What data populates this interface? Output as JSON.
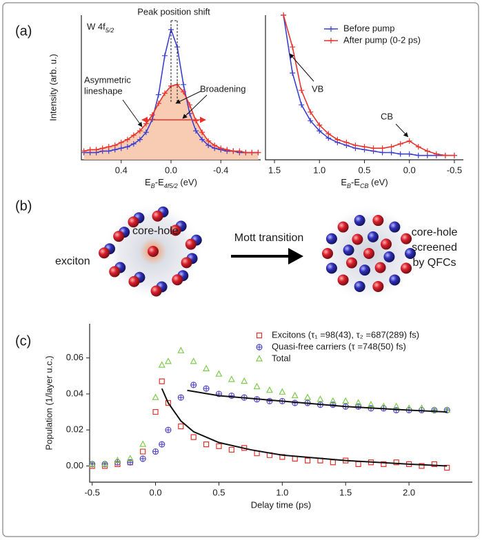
{
  "panel_labels": [
    "(a)",
    "(b)",
    "(c)"
  ],
  "chart_data": [
    {
      "type": "line",
      "label": [
        "W 4f",
        "5/2"
      ],
      "ylabel": "Intensity (arb. u.)",
      "xlabel": [
        "E",
        "B",
        "-E",
        "4f5/2",
        " (eV)"
      ],
      "annotations": [
        "Peak position shift",
        "Asymmetric",
        "lineshape",
        "Broadening"
      ],
      "x": [
        0.7,
        0.65,
        0.6,
        0.55,
        0.5,
        0.45,
        0.4,
        0.35,
        0.3,
        0.25,
        0.2,
        0.15,
        0.1,
        0.05,
        0,
        -0.05,
        -0.1,
        -0.15,
        -0.2,
        -0.25,
        -0.3,
        -0.35,
        -0.4,
        -0.45,
        -0.5,
        -0.55,
        -0.6,
        -0.65,
        -0.7
      ],
      "xlim": [
        0.72,
        -0.72
      ],
      "ylim": [
        0,
        1
      ],
      "xticks": [
        0.4,
        {
          "value": 0,
          "label": "0.0"
        },
        -0.4
      ],
      "series": [
        {
          "color": "#3b3fd1",
          "marker": "plus",
          "line": true,
          "values": [
            0.05,
            0.05,
            0.05,
            0.06,
            0.06,
            0.07,
            0.08,
            0.09,
            0.11,
            0.14,
            0.19,
            0.28,
            0.45,
            0.72,
            0.9,
            0.78,
            0.52,
            0.32,
            0.2,
            0.14,
            0.1,
            0.08,
            0.07,
            0.06,
            0.06,
            0.05,
            0.05,
            0.05,
            0.05
          ]
        },
        {
          "color": "#e8322b",
          "marker": "plus",
          "line": true,
          "fill": "#f6c3a6",
          "values": [
            0.06,
            0.07,
            0.07,
            0.08,
            0.09,
            0.1,
            0.12,
            0.14,
            0.17,
            0.2,
            0.25,
            0.31,
            0.39,
            0.46,
            0.51,
            0.52,
            0.47,
            0.38,
            0.27,
            0.19,
            0.13,
            0.1,
            0.08,
            0.07,
            0.06,
            0.06,
            0.05,
            0.05,
            0.05
          ]
        }
      ]
    },
    {
      "type": "line",
      "xlabel": [
        "E",
        "B",
        "-E",
        "CB",
        "  (eV)"
      ],
      "annotations": [
        "VB",
        "CB"
      ],
      "legend": "upper right",
      "x": [
        1.4,
        1.3,
        1.2,
        1.1,
        1.0,
        0.9,
        0.8,
        0.7,
        0.6,
        0.5,
        0.4,
        0.3,
        0.2,
        0.1,
        0,
        -0.1,
        -0.2,
        -0.3,
        -0.4,
        -0.5
      ],
      "xlim": [
        1.6,
        -0.6
      ],
      "ylim": [
        0,
        1
      ],
      "xticks": [
        1.5,
        {
          "value": 1,
          "label": "1.0"
        },
        0.5,
        {
          "value": 0,
          "label": "0.0"
        },
        -0.5
      ],
      "series": [
        {
          "name": "Before pump",
          "color": "#3b3fd1",
          "marker": "plus",
          "line": true,
          "values": [
            1.0,
            0.6,
            0.38,
            0.27,
            0.2,
            0.15,
            0.12,
            0.1,
            0.08,
            0.07,
            0.06,
            0.05,
            0.05,
            0.04,
            0.04,
            0.03,
            0.03,
            0.03,
            0.03,
            0.03
          ]
        },
        {
          "name": "After pump (0-2 ps)",
          "color": "#e8322b",
          "marker": "plus",
          "line": true,
          "values": [
            1.0,
            0.78,
            0.48,
            0.33,
            0.24,
            0.18,
            0.14,
            0.12,
            0.1,
            0.09,
            0.08,
            0.08,
            0.09,
            0.11,
            0.13,
            0.09,
            0.06,
            0.04,
            0.03,
            0.03
          ]
        }
      ]
    },
    {
      "type": "scatter",
      "xlabel": "Delay time (ps)",
      "ylabel": "Population (1/layer u.c.)",
      "legend": "upper right",
      "x": [
        -0.5,
        -0.4,
        -0.3,
        -0.2,
        -0.1,
        0,
        0.05,
        0.1,
        0.2,
        0.3,
        0.4,
        0.5,
        0.6,
        0.7,
        0.8,
        0.9,
        1.0,
        1.1,
        1.2,
        1.3,
        1.4,
        1.5,
        1.6,
        1.7,
        1.8,
        1.9,
        2.0,
        2.1,
        2.2,
        2.3
      ],
      "xlim": [
        -0.52,
        2.5
      ],
      "ylim": [
        -0.009,
        0.079
      ],
      "xticks": [
        -0.5,
        {
          "value": 0,
          "label": "0.0"
        },
        0.5,
        {
          "value": 1,
          "label": "1.0"
        },
        1.5,
        {
          "value": 2,
          "label": "2.0"
        }
      ],
      "yticks": [
        {
          "value": 0,
          "label": "0.00"
        },
        0.02,
        0.04,
        0.06
      ],
      "series": [
        {
          "name": "Excitons (τ₁ =98(43), τ₂ =687(289) fs)",
          "color": "#e0332a",
          "marker": "square",
          "values": [
            0.0,
            0.0,
            0.001,
            0.002,
            0.008,
            0.03,
            0.047,
            0.035,
            0.022,
            0.016,
            0.012,
            0.011,
            0.009,
            0.01,
            0.007,
            0.006,
            0.005,
            0.004,
            0.003,
            0.003,
            0.002,
            0.003,
            0.001,
            0.002,
            0.001,
            0.002,
            0.001,
            0.0,
            0.001,
            -0.001
          ]
        },
        {
          "name": "Quasi-free carriers (τ =748(50) fs)",
          "color": "#5a4fc4",
          "marker": "circle",
          "values": [
            0.001,
            0.001,
            0.002,
            0.002,
            0.004,
            0.008,
            0.012,
            0.02,
            0.038,
            0.045,
            0.043,
            0.04,
            0.039,
            0.038,
            0.037,
            0.036,
            0.036,
            0.035,
            0.035,
            0.034,
            0.034,
            0.033,
            0.033,
            0.032,
            0.032,
            0.031,
            0.031,
            0.031,
            0.031,
            0.031
          ]
        },
        {
          "name": "Total",
          "color": "#7ccc4a",
          "marker": "triangle",
          "values": [
            0.001,
            0.001,
            0.003,
            0.004,
            0.012,
            0.038,
            0.056,
            0.058,
            0.064,
            0.058,
            0.054,
            0.051,
            0.048,
            0.047,
            0.044,
            0.042,
            0.041,
            0.039,
            0.038,
            0.037,
            0.036,
            0.036,
            0.035,
            0.034,
            0.033,
            0.033,
            0.032,
            0.032,
            0.031,
            0.031
          ]
        },
        {
          "color": "#111111",
          "line": true,
          "x": [
            0.05,
            0.1,
            0.2,
            0.3,
            0.5,
            0.75,
            1.0,
            1.5,
            2.0,
            2.3
          ],
          "values": [
            0.043,
            0.035,
            0.025,
            0.019,
            0.013,
            0.009,
            0.006,
            0.003,
            0.001,
            0.0
          ]
        },
        {
          "color": "#111111",
          "line": true,
          "x": [
            0.25,
            0.5,
            1.0,
            1.5,
            2.0,
            2.3
          ],
          "values": [
            0.042,
            0.039,
            0.036,
            0.033,
            0.031,
            0.03
          ]
        }
      ]
    }
  ],
  "diagram": {
    "left": [
      "exciton",
      "core-hole"
    ],
    "arrow": "Mott transition",
    "right": [
      "core-hole",
      "screened",
      "by QFCs"
    ]
  }
}
